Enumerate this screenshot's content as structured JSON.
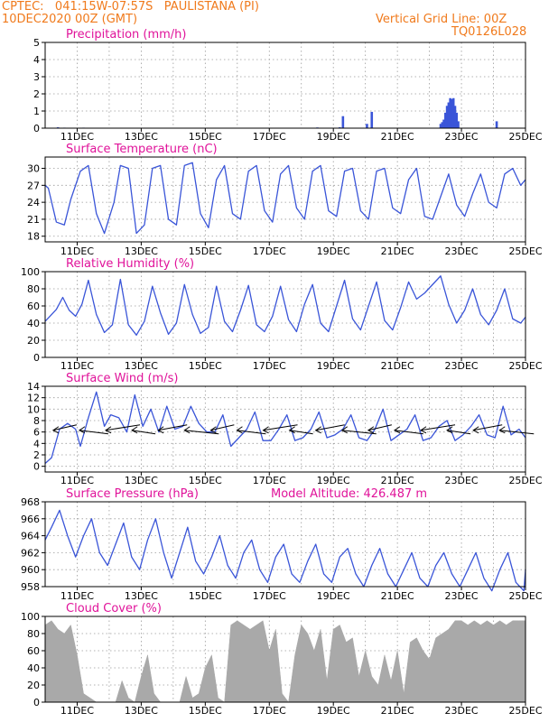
{
  "header": {
    "line1_left": "CPTEC:   041:15W-07:57S   PAULISTANA (PI)",
    "line2_left": "10DEC2020 00Z (GMT)",
    "line1_right": "Vertical Grid Line: 00Z",
    "line2_right": "TQ0126L028"
  },
  "colors": {
    "header": "#f07a1c",
    "title": "#e0139a",
    "series": "#3a55d8",
    "cloud": "#a9a9a9",
    "wind_barb": "#000000"
  },
  "x_ticks": [
    "11DEC",
    "13DEC",
    "15DEC",
    "17DEC",
    "19DEC",
    "21DEC",
    "23DEC",
    "25DEC"
  ],
  "chart_data": [
    {
      "id": "precipitation",
      "type": "bar",
      "title": "Precipitation (mm/h)",
      "x_unit": "days since 10DEC2020 00Z",
      "ylim": [
        0,
        5
      ],
      "yticks": [
        "0",
        "1",
        "2",
        "3",
        "4",
        "5"
      ],
      "x": [
        0.4,
        0.6,
        1.2,
        8.5,
        9.2,
        9.3,
        10.05,
        10.2,
        12.35,
        12.4,
        12.45,
        12.5,
        12.55,
        12.6,
        12.65,
        12.7,
        12.75,
        12.8,
        12.85,
        12.9,
        14.1
      ],
      "values": [
        0.05,
        0.03,
        0.03,
        0.04,
        0.05,
        0.7,
        0.25,
        0.95,
        0.25,
        0.35,
        0.5,
        0.9,
        1.3,
        1.5,
        1.75,
        1.7,
        1.75,
        1.3,
        0.9,
        0.4,
        0.4
      ]
    },
    {
      "id": "temperature",
      "type": "line",
      "title": "Surface Temperature (nC)",
      "ylim": [
        17,
        32
      ],
      "yticks": [
        "18",
        "21",
        "24",
        "27",
        "30"
      ],
      "x": [
        0,
        0.1,
        0.35,
        0.6,
        0.8,
        1.1,
        1.35,
        1.6,
        1.85,
        2.15,
        2.35,
        2.6,
        2.85,
        3.1,
        3.35,
        3.6,
        3.85,
        4.1,
        4.35,
        4.6,
        4.85,
        5.1,
        5.35,
        5.6,
        5.85,
        6.1,
        6.35,
        6.6,
        6.85,
        7.1,
        7.35,
        7.6,
        7.85,
        8.1,
        8.35,
        8.6,
        8.85,
        9.1,
        9.35,
        9.6,
        9.85,
        10.1,
        10.35,
        10.6,
        10.85,
        11.1,
        11.35,
        11.6,
        11.85,
        12.1,
        12.35,
        12.6,
        12.85,
        13.1,
        13.35,
        13.6,
        13.85,
        14.1,
        14.35,
        14.6,
        14.85,
        15
      ],
      "values": [
        27,
        26.5,
        20.5,
        20,
        24.5,
        29.5,
        30.5,
        22,
        18.5,
        24,
        30.5,
        30,
        18.5,
        20,
        30,
        30.5,
        21,
        20,
        30.5,
        31,
        22,
        19.5,
        28,
        30.5,
        22,
        21,
        29.5,
        30.5,
        22.5,
        20.5,
        29,
        30.5,
        23,
        21,
        29.5,
        30.5,
        22.5,
        21.5,
        29.5,
        30,
        22.5,
        21,
        29.5,
        30,
        23,
        22,
        28,
        30,
        21.5,
        21,
        25,
        29,
        23.5,
        21.5,
        25.5,
        29,
        24,
        23,
        29,
        30,
        27,
        28
      ]
    },
    {
      "id": "humidity",
      "type": "line",
      "title": "Relative Humidity (%)",
      "ylim": [
        0,
        100
      ],
      "yticks": [
        "0",
        "20",
        "40",
        "60",
        "80",
        "100"
      ],
      "x": [
        0,
        0.15,
        0.35,
        0.55,
        0.75,
        0.95,
        1.15,
        1.35,
        1.6,
        1.85,
        2.1,
        2.35,
        2.6,
        2.85,
        3.1,
        3.35,
        3.6,
        3.85,
        4.1,
        4.35,
        4.6,
        4.85,
        5.1,
        5.35,
        5.6,
        5.85,
        6.1,
        6.35,
        6.6,
        6.85,
        7.1,
        7.35,
        7.6,
        7.85,
        8.1,
        8.35,
        8.6,
        8.85,
        9.1,
        9.35,
        9.6,
        9.85,
        10.1,
        10.35,
        10.6,
        10.85,
        11.1,
        11.35,
        11.6,
        11.85,
        12.1,
        12.35,
        12.6,
        12.85,
        13.1,
        13.35,
        13.6,
        13.85,
        14.1,
        14.35,
        14.6,
        14.85,
        15
      ],
      "values": [
        42,
        48,
        56,
        70,
        55,
        48,
        62,
        90,
        50,
        29,
        38,
        91,
        38,
        26,
        42,
        83,
        52,
        27,
        40,
        85,
        50,
        28,
        35,
        83,
        42,
        30,
        55,
        84,
        38,
        30,
        48,
        83,
        44,
        30,
        62,
        85,
        40,
        30,
        60,
        90,
        45,
        32,
        60,
        88,
        43,
        32,
        58,
        88,
        68,
        75,
        85,
        95,
        62,
        40,
        55,
        80,
        50,
        38,
        55,
        80,
        45,
        40,
        47
      ]
    },
    {
      "id": "wind",
      "type": "line",
      "title": "Surface Wind (m/s)",
      "ylim": [
        -1,
        14
      ],
      "yticks": [
        "0",
        "2",
        "4",
        "6",
        "8",
        "10",
        "12",
        "14"
      ],
      "x": [
        0,
        0.2,
        0.45,
        0.7,
        0.95,
        1.1,
        1.35,
        1.6,
        1.85,
        2.05,
        2.3,
        2.55,
        2.8,
        3.05,
        3.3,
        3.55,
        3.8,
        4.05,
        4.3,
        4.55,
        4.8,
        5.05,
        5.3,
        5.55,
        5.8,
        6.05,
        6.3,
        6.55,
        6.8,
        7.05,
        7.3,
        7.55,
        7.8,
        8.05,
        8.3,
        8.55,
        8.8,
        9.05,
        9.3,
        9.55,
        9.8,
        10.05,
        10.3,
        10.55,
        10.8,
        11.05,
        11.3,
        11.55,
        11.8,
        12.05,
        12.3,
        12.55,
        12.8,
        13.05,
        13.3,
        13.55,
        13.8,
        14.05,
        14.3,
        14.55,
        14.8,
        15
      ],
      "values": [
        0.5,
        1.5,
        6.5,
        7.5,
        6.5,
        3.5,
        8.5,
        13,
        7,
        9,
        8.5,
        6,
        12.5,
        7,
        10,
        6,
        10.5,
        6.5,
        7,
        10.5,
        7.5,
        6,
        6,
        9,
        3.5,
        5,
        6.5,
        9.5,
        4.5,
        4.5,
        6.5,
        9,
        4.5,
        5,
        6.5,
        9.5,
        5,
        5.5,
        6.5,
        9,
        5,
        4.5,
        6.5,
        10,
        4.5,
        5.5,
        6.5,
        9,
        4.5,
        5,
        7,
        8,
        4.5,
        5.5,
        7,
        9,
        5.5,
        5,
        10.5,
        5.5,
        6.5,
        5
      ]
    },
    {
      "id": "pressure",
      "type": "line",
      "title": "Surface Pressure (hPa)",
      "annotation": "Model Altitude: 426.487 m",
      "ylim": [
        958,
        968
      ],
      "yticks": [
        "958",
        "960",
        "962",
        "964",
        "966",
        "968"
      ],
      "x": [
        0,
        0.2,
        0.45,
        0.7,
        0.95,
        1.2,
        1.45,
        1.7,
        1.95,
        2.2,
        2.45,
        2.7,
        2.95,
        3.2,
        3.45,
        3.7,
        3.95,
        4.2,
        4.45,
        4.7,
        4.95,
        5.2,
        5.45,
        5.7,
        5.95,
        6.2,
        6.45,
        6.7,
        6.95,
        7.2,
        7.45,
        7.7,
        7.95,
        8.2,
        8.45,
        8.7,
        8.95,
        9.2,
        9.45,
        9.7,
        9.95,
        10.2,
        10.45,
        10.7,
        10.95,
        11.2,
        11.45,
        11.7,
        11.95,
        12.2,
        12.45,
        12.7,
        12.95,
        13.2,
        13.45,
        13.7,
        13.95,
        14.2,
        14.45,
        14.7,
        14.95,
        15
      ],
      "values": [
        963.5,
        965,
        967,
        964,
        961.5,
        964,
        966,
        962,
        960.5,
        963,
        965.5,
        961.5,
        960,
        963.5,
        966,
        962,
        959,
        962,
        965,
        961,
        959.5,
        961.5,
        964,
        960.5,
        959,
        962,
        963.5,
        960,
        958.5,
        961.5,
        963,
        959.5,
        958.5,
        961,
        963,
        959.5,
        958.5,
        961.5,
        962.5,
        959.5,
        958,
        960.5,
        962.5,
        959.5,
        958,
        960,
        962,
        959,
        958,
        960.5,
        962,
        959.5,
        958,
        960,
        962,
        959,
        957.5,
        960,
        962,
        958.5,
        957.5,
        960
      ]
    },
    {
      "id": "cloud_cover",
      "type": "area",
      "title": "Cloud Cover (%)",
      "ylim": [
        0,
        100
      ],
      "yticks": [
        "0",
        "20",
        "40",
        "60",
        "80",
        "100"
      ],
      "x": [
        0,
        0.2,
        0.4,
        0.6,
        0.8,
        1.0,
        1.2,
        1.4,
        1.6,
        1.8,
        2.0,
        2.2,
        2.4,
        2.6,
        2.8,
        3.0,
        3.2,
        3.4,
        3.6,
        3.8,
        4.0,
        4.2,
        4.4,
        4.6,
        4.8,
        5.0,
        5.2,
        5.4,
        5.6,
        5.8,
        6.0,
        6.2,
        6.4,
        6.6,
        6.8,
        7.0,
        7.2,
        7.4,
        7.6,
        7.8,
        8.0,
        8.2,
        8.4,
        8.6,
        8.8,
        9.0,
        9.2,
        9.4,
        9.6,
        9.8,
        10.0,
        10.2,
        10.4,
        10.6,
        10.8,
        11.0,
        11.2,
        11.4,
        11.6,
        11.8,
        12.0,
        12.2,
        12.4,
        12.6,
        12.8,
        13.0,
        13.2,
        13.4,
        13.6,
        13.8,
        14.0,
        14.2,
        14.4,
        14.6,
        14.8,
        15.0
      ],
      "values": [
        90,
        95,
        85,
        80,
        90,
        55,
        10,
        5,
        0,
        0,
        0,
        0,
        25,
        5,
        0,
        30,
        55,
        10,
        0,
        0,
        0,
        0,
        30,
        5,
        10,
        40,
        55,
        5,
        0,
        90,
        95,
        90,
        85,
        90,
        95,
        60,
        85,
        10,
        0,
        55,
        90,
        80,
        60,
        85,
        25,
        85,
        90,
        70,
        75,
        30,
        60,
        30,
        20,
        55,
        25,
        60,
        10,
        70,
        75,
        60,
        50,
        75,
        80,
        85,
        95,
        95,
        90,
        95,
        90,
        95,
        90,
        95,
        90,
        95,
        95,
        95
      ]
    }
  ]
}
